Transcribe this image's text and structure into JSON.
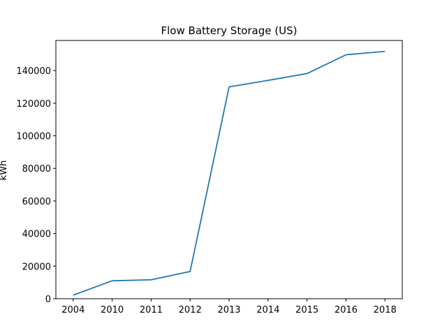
{
  "chart_data": {
    "type": "line",
    "title": "Flow Battery Storage (US)",
    "xlabel": "",
    "ylabel": "kWh",
    "categories": [
      "2004",
      "2010",
      "2011",
      "2012",
      "2013",
      "2014",
      "2015",
      "2016",
      "2018"
    ],
    "series": [
      {
        "values": [
          2200,
          11000,
          11600,
          16700,
          130000,
          134000,
          138200,
          149700,
          151800
        ],
        "color": "#1f77b4"
      }
    ],
    "ylim": [
      0,
      158500
    ],
    "yticks": [
      0,
      20000,
      40000,
      60000,
      80000,
      100000,
      120000,
      140000
    ],
    "grid": false,
    "legend": "none"
  }
}
